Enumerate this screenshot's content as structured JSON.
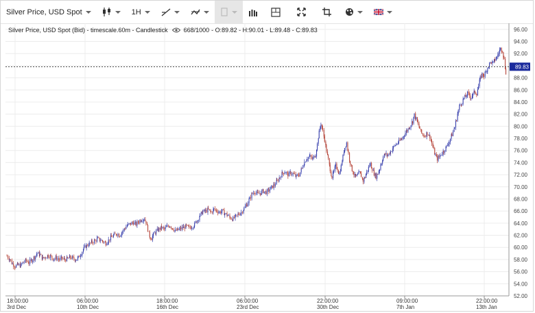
{
  "toolbar": {
    "symbol": "Silver Price, USD Spot",
    "timeframe": "1H",
    "icons": [
      "candlestick-icon",
      "line-tool-icon",
      "compare-icon",
      "drawing-icon",
      "bar-chart-icon",
      "crosshair-icon",
      "fullscreen-icon",
      "screenshot-icon",
      "palette-icon",
      "flag-uk-icon"
    ]
  },
  "info": {
    "title": "Silver Price, USD Spot (Bid) - timescale.60m - Candlestick",
    "count": "668/1000",
    "ohlc": "- O:89.82 - H:90.01 - L:89.48 - C:89.83"
  },
  "colors": {
    "up": "#2d35a8",
    "down": "#b23a2e",
    "grid": "#ececec",
    "price_line": "#333333",
    "price_tag": "#1a2a9c"
  },
  "chart_data": {
    "type": "candlestick",
    "title": "Silver Price, USD Spot (Bid) - timescale.60m - Candlestick",
    "ylim": [
      52,
      97
    ],
    "y_ticks": [
      "96.00",
      "94.00",
      "92.00",
      "90.00",
      "88.00",
      "86.00",
      "84.00",
      "82.00",
      "80.00",
      "78.00",
      "76.00",
      "74.00",
      "72.00",
      "70.00",
      "68.00",
      "66.00",
      "64.00",
      "62.00",
      "60.00",
      "58.00",
      "56.00",
      "54.00",
      "52.00"
    ],
    "x_ticks": [
      {
        "time": "18:00:00",
        "date": "3rd Dec"
      },
      {
        "time": "06:00:00",
        "date": "10th Dec"
      },
      {
        "time": "18:00:00",
        "date": "16th Dec"
      },
      {
        "time": "06:00:00",
        "date": "23rd Dec"
      },
      {
        "time": "22:00:00",
        "date": "30th Dec"
      },
      {
        "time": "09:00:00",
        "date": "7th Jan"
      },
      {
        "time": "22:00:00",
        "date": "13th Jan"
      }
    ],
    "last_price": "89.83",
    "path": [
      [
        0,
        58.6
      ],
      [
        3,
        58.1
      ],
      [
        6,
        57.3
      ],
      [
        9,
        56.9
      ],
      [
        12,
        57.1
      ],
      [
        15,
        57.0
      ],
      [
        18,
        57.6
      ],
      [
        21,
        57.8
      ],
      [
        24,
        57.5
      ],
      [
        27,
        57.9
      ],
      [
        30,
        58.4
      ],
      [
        33,
        59.0
      ],
      [
        36,
        58.8
      ],
      [
        39,
        58.2
      ],
      [
        42,
        58.4
      ],
      [
        45,
        58.7
      ],
      [
        48,
        58.5
      ],
      [
        51,
        58.1
      ],
      [
        54,
        58.3
      ],
      [
        57,
        58.0
      ],
      [
        60,
        58.2
      ],
      [
        63,
        58.0
      ],
      [
        66,
        58.1
      ],
      [
        69,
        58.4
      ],
      [
        72,
        58.2
      ],
      [
        75,
        58.0
      ],
      [
        78,
        58.3
      ],
      [
        81,
        59.0
      ],
      [
        84,
        59.8
      ],
      [
        87,
        60.3
      ],
      [
        90,
        60.6
      ],
      [
        93,
        60.9
      ],
      [
        96,
        61.1
      ],
      [
        99,
        61.4
      ],
      [
        102,
        61.2
      ],
      [
        105,
        61.0
      ],
      [
        108,
        60.7
      ],
      [
        111,
        61.2
      ],
      [
        114,
        61.7
      ],
      [
        117,
        62.0
      ],
      [
        120,
        62.3
      ],
      [
        123,
        62.0
      ],
      [
        126,
        62.6
      ],
      [
        129,
        63.2
      ],
      [
        132,
        63.7
      ],
      [
        135,
        63.9
      ],
      [
        138,
        64.1
      ],
      [
        141,
        63.8
      ],
      [
        144,
        64.3
      ],
      [
        147,
        64.6
      ],
      [
        150,
        64.8
      ],
      [
        152,
        64.2
      ],
      [
        154,
        63.0
      ],
      [
        156,
        61.8
      ],
      [
        158,
        61.5
      ],
      [
        160,
        62.1
      ],
      [
        163,
        62.6
      ],
      [
        166,
        63.0
      ],
      [
        169,
        63.3
      ],
      [
        172,
        63.0
      ],
      [
        175,
        63.4
      ],
      [
        178,
        63.6
      ],
      [
        181,
        63.2
      ],
      [
        184,
        62.7
      ],
      [
        187,
        62.9
      ],
      [
        190,
        63.1
      ],
      [
        193,
        63.3
      ],
      [
        196,
        63.5
      ],
      [
        199,
        63.2
      ],
      [
        202,
        63.4
      ],
      [
        205,
        63.8
      ],
      [
        208,
        64.5
      ],
      [
        211,
        65.3
      ],
      [
        214,
        65.9
      ],
      [
        217,
        66.0
      ],
      [
        220,
        66.2
      ],
      [
        223,
        65.8
      ],
      [
        226,
        66.3
      ],
      [
        229,
        66.1
      ],
      [
        232,
        65.8
      ],
      [
        235,
        66.0
      ],
      [
        238,
        65.6
      ],
      [
        241,
        65.3
      ],
      [
        244,
        64.9
      ],
      [
        247,
        64.7
      ],
      [
        250,
        65.1
      ],
      [
        253,
        65.5
      ],
      [
        256,
        65.8
      ],
      [
        259,
        66.4
      ],
      [
        262,
        67.1
      ],
      [
        265,
        68.0
      ],
      [
        268,
        68.9
      ],
      [
        271,
        69.2
      ],
      [
        274,
        68.8
      ],
      [
        277,
        69.0
      ],
      [
        280,
        69.3
      ],
      [
        283,
        69.1
      ],
      [
        286,
        69.4
      ],
      [
        289,
        69.9
      ],
      [
        292,
        70.3
      ],
      [
        295,
        70.9
      ],
      [
        298,
        71.6
      ],
      [
        301,
        72.3
      ],
      [
        304,
        72.5
      ],
      [
        307,
        72.0
      ],
      [
        310,
        72.3
      ],
      [
        313,
        72.1
      ],
      [
        316,
        71.7
      ],
      [
        319,
        72.0
      ],
      [
        322,
        73.0
      ],
      [
        325,
        74.1
      ],
      [
        328,
        74.8
      ],
      [
        331,
        75.0
      ],
      [
        334,
        74.6
      ],
      [
        337,
        75.3
      ],
      [
        339,
        77.0
      ],
      [
        341,
        79.0
      ],
      [
        343,
        80.5
      ],
      [
        345,
        79.2
      ],
      [
        347,
        77.8
      ],
      [
        349,
        76.0
      ],
      [
        351,
        74.5
      ],
      [
        353,
        72.9
      ],
      [
        355,
        71.6
      ],
      [
        357,
        72.4
      ],
      [
        359,
        73.5
      ],
      [
        361,
        73.0
      ],
      [
        363,
        72.1
      ],
      [
        365,
        73.4
      ],
      [
        367,
        75.0
      ],
      [
        369,
        76.5
      ],
      [
        371,
        77.3
      ],
      [
        373,
        75.5
      ],
      [
        375,
        74.0
      ],
      [
        377,
        72.8
      ],
      [
        379,
        72.1
      ],
      [
        381,
        71.6
      ],
      [
        383,
        71.9
      ],
      [
        385,
        72.3
      ],
      [
        387,
        71.8
      ],
      [
        389,
        71.0
      ],
      [
        391,
        71.6
      ],
      [
        393,
        72.4
      ],
      [
        395,
        73.2
      ],
      [
        397,
        73.8
      ],
      [
        399,
        73.0
      ],
      [
        401,
        72.2
      ],
      [
        403,
        71.7
      ],
      [
        405,
        72.2
      ],
      [
        407,
        73.0
      ],
      [
        409,
        74.0
      ],
      [
        411,
        74.9
      ],
      [
        413,
        75.4
      ],
      [
        416,
        75.2
      ],
      [
        419,
        75.8
      ],
      [
        422,
        76.5
      ],
      [
        425,
        77.0
      ],
      [
        428,
        77.4
      ],
      [
        431,
        77.9
      ],
      [
        434,
        78.6
      ],
      [
        437,
        79.3
      ],
      [
        440,
        80.0
      ],
      [
        443,
        80.8
      ],
      [
        445,
        81.9
      ],
      [
        447,
        81.2
      ],
      [
        449,
        80.3
      ],
      [
        451,
        79.6
      ],
      [
        453,
        78.8
      ],
      [
        456,
        78.4
      ],
      [
        459,
        78.9
      ],
      [
        462,
        78.3
      ],
      [
        464,
        77.2
      ],
      [
        466,
        76.1
      ],
      [
        468,
        75.2
      ],
      [
        470,
        74.6
      ],
      [
        472,
        74.9
      ],
      [
        474,
        75.4
      ],
      [
        477,
        75.9
      ],
      [
        480,
        76.6
      ],
      [
        483,
        77.5
      ],
      [
        486,
        78.6
      ],
      [
        489,
        79.8
      ],
      [
        491,
        81.2
      ],
      [
        493,
        82.6
      ],
      [
        495,
        83.6
      ],
      [
        497,
        84.0
      ],
      [
        499,
        84.6
      ],
      [
        501,
        84.9
      ],
      [
        503,
        85.4
      ],
      [
        505,
        85.1
      ],
      [
        507,
        84.8
      ],
      [
        509,
        85.3
      ],
      [
        511,
        85.7
      ],
      [
        513,
        85.4
      ],
      [
        515,
        86.6
      ],
      [
        517,
        87.9
      ],
      [
        519,
        88.6
      ],
      [
        521,
        88.4
      ],
      [
        523,
        88.9
      ],
      [
        525,
        89.7
      ],
      [
        527,
        90.3
      ],
      [
        529,
        90.6
      ],
      [
        531,
        90.4
      ],
      [
        533,
        91.0
      ],
      [
        535,
        91.4
      ],
      [
        537,
        92.1
      ],
      [
        539,
        92.8
      ],
      [
        541,
        92.6
      ],
      [
        543,
        91.0
      ],
      [
        545,
        88.9
      ],
      [
        547,
        87.9
      ],
      [
        549,
        89.83
      ]
    ]
  }
}
